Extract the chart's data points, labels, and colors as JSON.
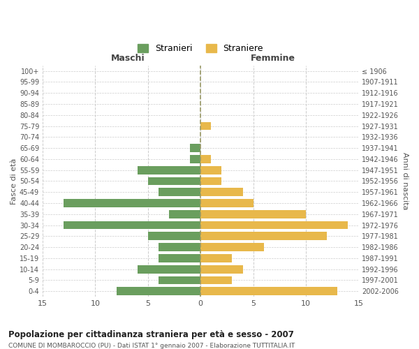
{
  "age_groups": [
    "0-4",
    "5-9",
    "10-14",
    "15-19",
    "20-24",
    "25-29",
    "30-34",
    "35-39",
    "40-44",
    "45-49",
    "50-54",
    "55-59",
    "60-64",
    "65-69",
    "70-74",
    "75-79",
    "80-84",
    "85-89",
    "90-94",
    "95-99",
    "100+"
  ],
  "birth_years": [
    "2002-2006",
    "1997-2001",
    "1992-1996",
    "1987-1991",
    "1982-1986",
    "1977-1981",
    "1972-1976",
    "1967-1971",
    "1962-1966",
    "1957-1961",
    "1952-1956",
    "1947-1951",
    "1942-1946",
    "1937-1941",
    "1932-1936",
    "1927-1931",
    "1922-1926",
    "1917-1921",
    "1912-1916",
    "1907-1911",
    "≤ 1906"
  ],
  "maschi": [
    8,
    4,
    6,
    4,
    4,
    5,
    13,
    3,
    13,
    4,
    5,
    6,
    1,
    1,
    0,
    0,
    0,
    0,
    0,
    0,
    0
  ],
  "femmine": [
    13,
    3,
    4,
    3,
    6,
    12,
    14,
    10,
    5,
    4,
    2,
    2,
    1,
    0,
    0,
    1,
    0,
    0,
    0,
    0,
    0
  ],
  "maschi_color": "#6a9e5e",
  "femmine_color": "#e8b84b",
  "title": "Popolazione per cittadinanza straniera per età e sesso - 2007",
  "subtitle": "COMUNE DI MOMBAROCCIO (PU) - Dati ISTAT 1° gennaio 2007 - Elaborazione TUTTITALIA.IT",
  "xlabel_left": "Maschi",
  "xlabel_right": "Femmine",
  "ylabel_left": "Fasce di età",
  "ylabel_right": "Anni di nascita",
  "legend_stranieri": "Stranieri",
  "legend_straniere": "Straniere",
  "xlim": 15,
  "background_color": "#ffffff",
  "grid_color": "#cccccc",
  "bar_height": 0.75,
  "center_line_color": "#999966"
}
